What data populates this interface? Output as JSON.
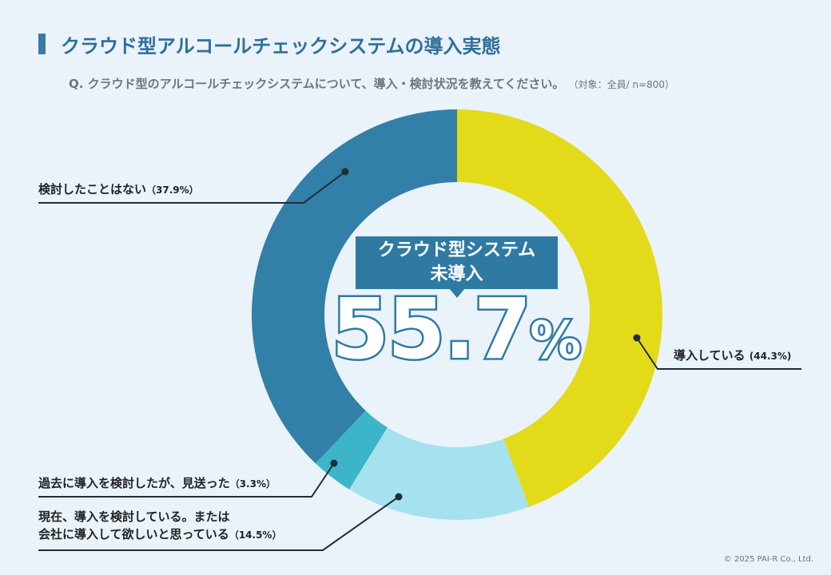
{
  "header": {
    "title": "クラウド型アルコールチェックシステムの導入実態",
    "question": "Q. クラウド型のアルコールチェックシステムについて、導入・検討状況を教えてください。",
    "note": "（対象：全員/ n=800）"
  },
  "center": {
    "label_line1": "クラウド型システム",
    "label_line2": "未導入",
    "value": "55.7",
    "unit": "%"
  },
  "labels": {
    "introduced": {
      "text": "導入している",
      "pct": "(44.3%)"
    },
    "never": {
      "text": "検討したことはない",
      "pct": "（37.9%）"
    },
    "past": {
      "text": "過去に導入を検討したが、見送った",
      "pct": "（3.3%）"
    },
    "considering_line1": "現在、導入を検討している。または",
    "considering_line2": "会社に導入して欲しいと思っている",
    "considering_pct": "（14.5%）"
  },
  "copyright": "© 2025 PAI-R Co., Ltd.",
  "chart_data": {
    "type": "pie",
    "donut": true,
    "start": "top, clockwise",
    "slices": [
      {
        "label": "導入している",
        "value": 44.3,
        "color": "#e3da1a"
      },
      {
        "label": "現在、導入を検討している。または会社に導入して欲しいと思っている",
        "value": 14.5,
        "color": "#a5e1ee"
      },
      {
        "label": "過去に導入を検討したが、見送った",
        "value": 3.3,
        "color": "#3db5c8"
      },
      {
        "label": "検討したことはない",
        "value": 37.9,
        "color": "#327fa7"
      }
    ]
  }
}
